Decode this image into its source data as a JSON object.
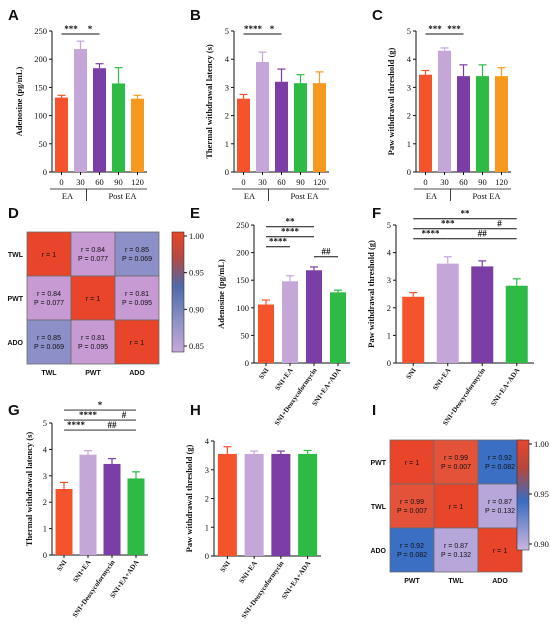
{
  "panel_labels": [
    "A",
    "B",
    "C",
    "D",
    "E",
    "F",
    "G",
    "H",
    "I"
  ],
  "colors": {
    "c1": "#f5532b",
    "c2": "#c4a6d8",
    "c3": "#7a3ea6",
    "c4": "#2dbb45",
    "c5": "#f7991f"
  },
  "chart_data": [
    {
      "id": "A",
      "type": "bar",
      "categories": [
        "0",
        "30",
        "60",
        "90",
        "120"
      ],
      "values": [
        132,
        218,
        184,
        157,
        130
      ],
      "errors": [
        4,
        14,
        8,
        28,
        6
      ],
      "ylabel": "Adenosine (pg/mL)",
      "ylim": [
        0,
        250
      ],
      "yticks": [
        0,
        50,
        100,
        150,
        200,
        250
      ],
      "group_labels": [
        "EA",
        "Post EA"
      ],
      "sig": [
        "***",
        "*"
      ]
    },
    {
      "id": "B",
      "type": "bar",
      "categories": [
        "0",
        "30",
        "60",
        "90",
        "120"
      ],
      "values": [
        2.6,
        3.9,
        3.2,
        3.15,
        3.15
      ],
      "errors": [
        0.15,
        0.35,
        0.45,
        0.3,
        0.4
      ],
      "ylabel": "Thermal withdrawal latency (s)",
      "ylim": [
        0,
        5
      ],
      "yticks": [
        0,
        1,
        2,
        3,
        4,
        5
      ],
      "group_labels": [
        "EA",
        "Post EA"
      ],
      "sig": [
        "****",
        "*"
      ]
    },
    {
      "id": "C",
      "type": "bar",
      "categories": [
        "0",
        "30",
        "60",
        "90",
        "120"
      ],
      "values": [
        3.45,
        4.3,
        3.4,
        3.4,
        3.4
      ],
      "errors": [
        0.15,
        0.1,
        0.4,
        0.4,
        0.3
      ],
      "ylabel": "Paw withdrawal threshold (g)",
      "ylim": [
        0,
        5
      ],
      "yticks": [
        0,
        1,
        2,
        3,
        4,
        5
      ],
      "group_labels": [
        "EA",
        "Post EA"
      ],
      "sig": [
        "***",
        "***"
      ]
    },
    {
      "id": "D",
      "type": "heatmap",
      "rows": [
        "TWL",
        "PWT",
        "ADO"
      ],
      "cols": [
        "TWL",
        "PWT",
        "ADO"
      ],
      "cells": [
        [
          "r = 1",
          "r = 0.84\nP = 0.077",
          "r = 0.85\nP = 0.069"
        ],
        [
          "r = 0.84\nP = 0.077",
          "r = 1",
          "r = 0.81\nP = 0.095"
        ],
        [
          "r = 0.85\nP = 0.069",
          "r = 0.81\nP = 0.095",
          "r = 1"
        ]
      ],
      "values": [
        [
          1,
          0.84,
          0.85
        ],
        [
          0.84,
          1,
          0.81
        ],
        [
          0.85,
          0.81,
          1
        ]
      ],
      "colorbar_ticks": [
        "1.00",
        "0.95",
        "0.90",
        "0.85"
      ]
    },
    {
      "id": "E",
      "type": "bar",
      "categories": [
        "SNI",
        "SNI+EA",
        "SNI+Deoxycoformycin",
        "SNI+EA+ADA"
      ],
      "values": [
        106,
        148,
        168,
        128
      ],
      "errors": [
        8,
        10,
        6,
        4
      ],
      "ylabel": "Adenosine (pg/mL)",
      "ylim": [
        0,
        250
      ],
      "yticks": [
        0,
        50,
        100,
        150,
        200,
        250
      ],
      "sig": [
        "**",
        "****",
        "****",
        "##"
      ]
    },
    {
      "id": "F",
      "type": "bar",
      "categories": [
        "SNI",
        "SNI+EA",
        "SNI+Deoxycoformycin",
        "SNI+EA+ADA"
      ],
      "values": [
        2.4,
        3.6,
        3.5,
        2.8
      ],
      "errors": [
        0.15,
        0.25,
        0.2,
        0.25
      ],
      "ylabel": "Paw withdrawal threshold (g)",
      "ylim": [
        0,
        5
      ],
      "yticks": [
        0,
        1,
        2,
        3,
        4,
        5
      ],
      "sig": [
        "**",
        "***",
        "#",
        "****",
        "##"
      ]
    },
    {
      "id": "G",
      "type": "bar",
      "categories": [
        "SNI",
        "SNI+EA",
        "SNI+Deoxycoformycin",
        "SNI+EA+ADA"
      ],
      "values": [
        2.5,
        3.8,
        3.45,
        2.9
      ],
      "errors": [
        0.25,
        0.15,
        0.2,
        0.25
      ],
      "ylabel": "Thermal withdrawal latency (s)",
      "ylim": [
        0,
        5
      ],
      "yticks": [
        0,
        1,
        2,
        3,
        4,
        5
      ],
      "sig": [
        "*",
        "****",
        "#",
        "****",
        "##"
      ]
    },
    {
      "id": "H",
      "type": "bar",
      "categories": [
        "SNI",
        "SNI+EA",
        "SNI+Deoxycoformycin",
        "SNI+EA+ADA"
      ],
      "values": [
        3.55,
        3.55,
        3.55,
        3.55
      ],
      "errors": [
        0.25,
        0.1,
        0.1,
        0.12
      ],
      "ylabel": "Paw withdrawal threshold (g)",
      "ylim": [
        0,
        4
      ],
      "yticks": [
        0,
        1,
        2,
        3,
        4
      ],
      "sig": []
    },
    {
      "id": "I",
      "type": "heatmap",
      "rows": [
        "PWT",
        "TWL",
        "ADO"
      ],
      "cols": [
        "PWT",
        "TWL",
        "ADO"
      ],
      "cells": [
        [
          "r = 1",
          "r = 0.99\nP = 0.007",
          "r = 0.92\nP = 0.082"
        ],
        [
          "r = 0.99\nP = 0.007",
          "r = 1",
          "r = 0.87\nP = 0.132"
        ],
        [
          "r = 0.92\nP = 0.082",
          "r = 0.87\nP = 0.132",
          "r = 1"
        ]
      ],
      "values": [
        [
          1,
          0.99,
          0.92
        ],
        [
          0.99,
          1,
          0.87
        ],
        [
          0.92,
          0.87,
          1
        ]
      ],
      "colorbar_ticks": [
        "1.00",
        "0.95",
        "0.90"
      ]
    }
  ]
}
